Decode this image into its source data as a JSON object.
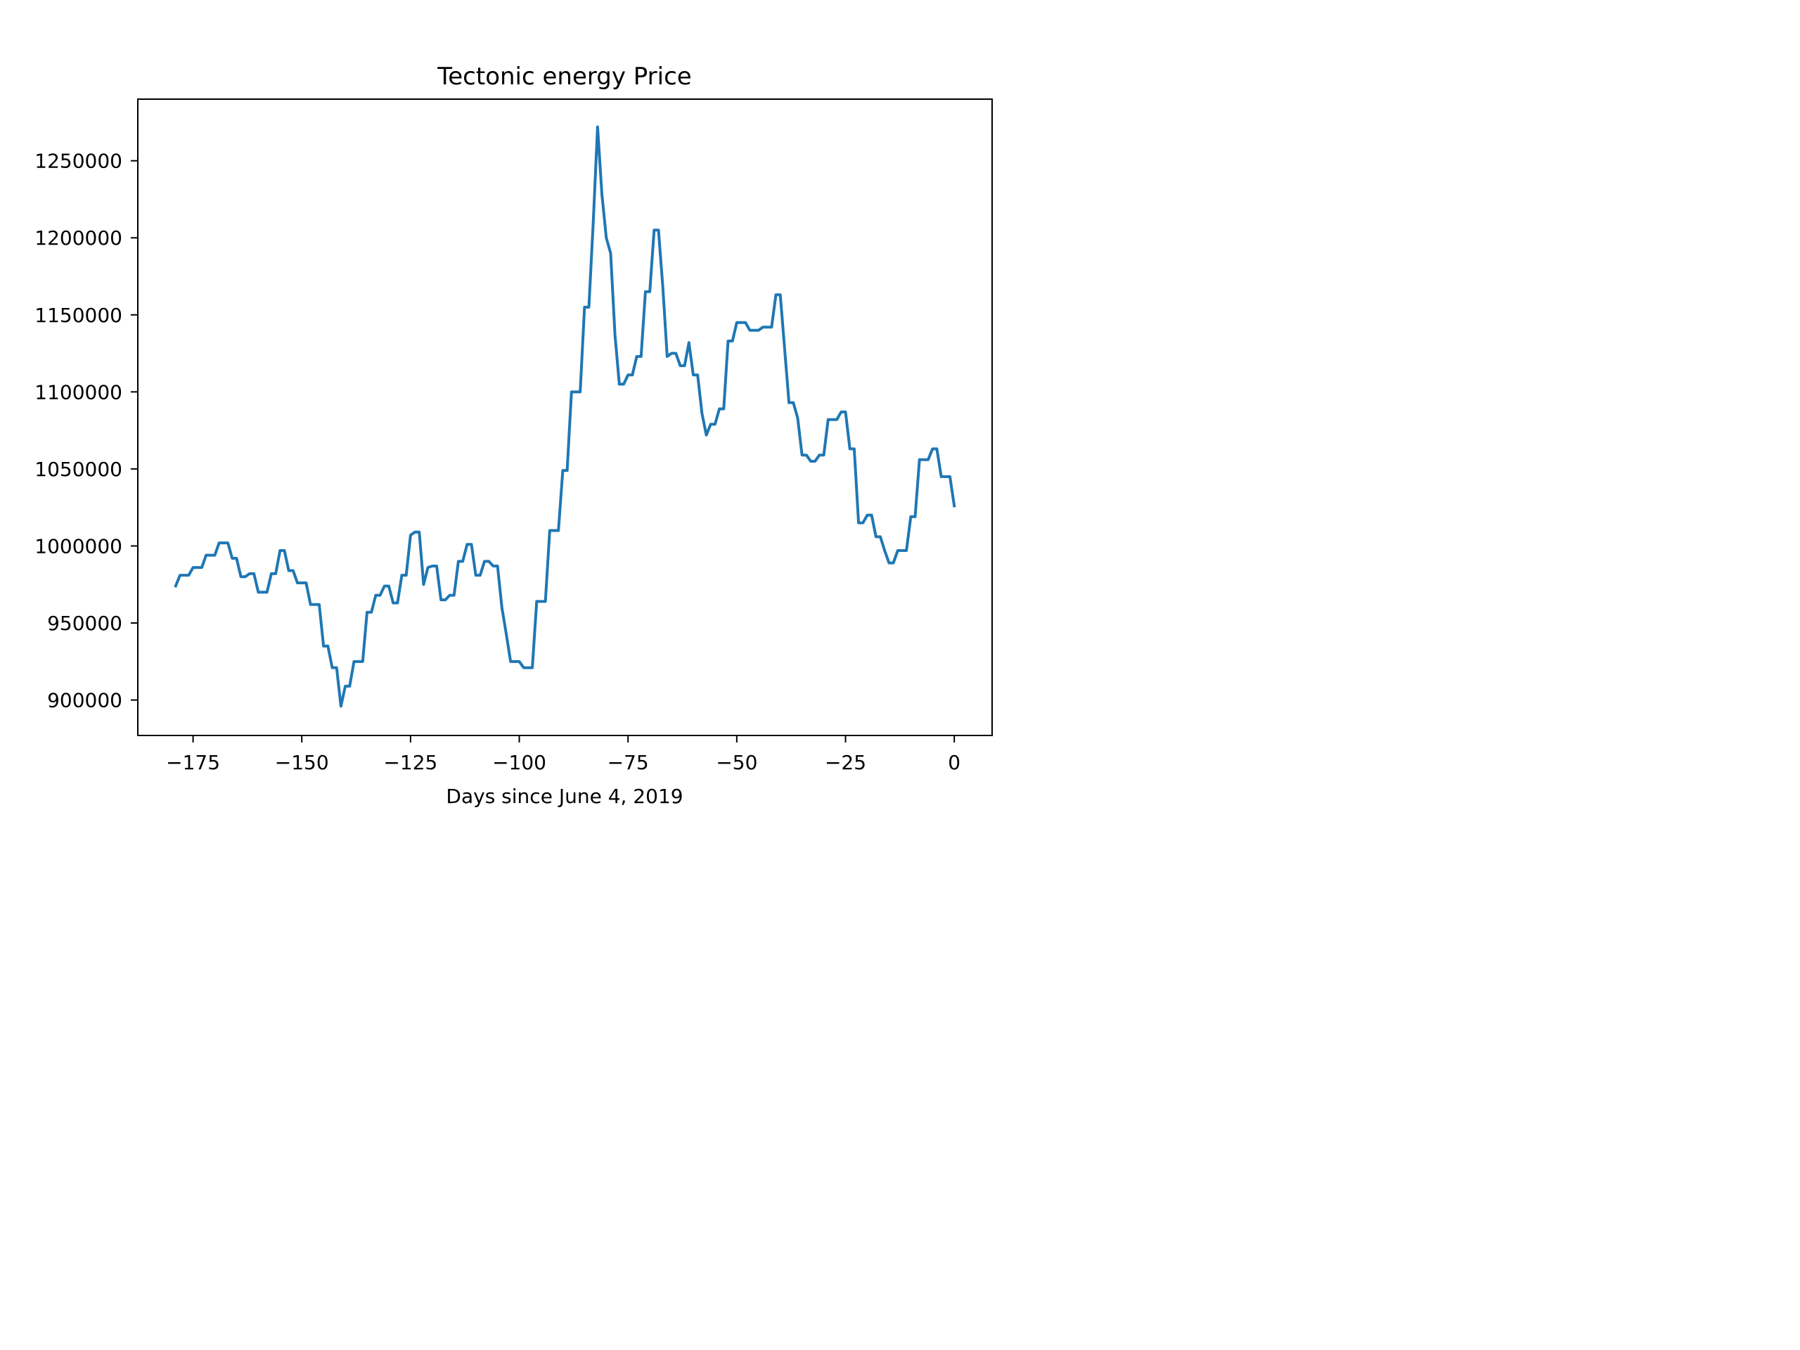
{
  "chart_data": {
    "type": "line",
    "title": "Tectonic energy Price",
    "xlabel": "Days since June 4, 2019",
    "ylabel": "",
    "xlim": [
      -187.7,
      8.7
    ],
    "ylim": [
      877000,
      1290000
    ],
    "xticks": [
      -175,
      -150,
      -125,
      -100,
      -75,
      -50,
      -25,
      0
    ],
    "xtick_labels": [
      "−175",
      "−150",
      "−125",
      "−100",
      "−75",
      "−50",
      "−25",
      "0"
    ],
    "yticks": [
      900000,
      950000,
      1000000,
      1050000,
      1100000,
      1150000,
      1200000,
      1250000
    ],
    "ytick_labels": [
      "900000",
      "950000",
      "1000000",
      "1050000",
      "1100000",
      "1150000",
      "1200000",
      "1250000"
    ],
    "grid": false,
    "color": "#1f77b4",
    "series": [
      {
        "x": [
          -179,
          -178,
          -177,
          -176,
          -175,
          -174,
          -173,
          -172,
          -171,
          -170,
          -169,
          -168,
          -167,
          -166,
          -165,
          -164,
          -163,
          -162,
          -161,
          -160,
          -159,
          -158,
          -157,
          -156,
          -155,
          -154,
          -153,
          -152,
          -151,
          -150,
          -149,
          -148,
          -147,
          -146,
          -145,
          -144,
          -143,
          -142,
          -141,
          -140,
          -139,
          -138,
          -137,
          -136,
          -135,
          -134,
          -133,
          -132,
          -131,
          -130,
          -129,
          -128,
          -127,
          -126,
          -125,
          -124,
          -123,
          -122,
          -121,
          -120,
          -119,
          -118,
          -117,
          -116,
          -115,
          -114,
          -113,
          -112,
          -111,
          -110,
          -109,
          -108,
          -107,
          -106,
          -105,
          -104,
          -103,
          -102,
          -101,
          -100,
          -99,
          -98,
          -97,
          -96,
          -95,
          -94,
          -93,
          -92,
          -91,
          -90,
          -89,
          -88,
          -87,
          -86,
          -85,
          -84,
          -83,
          -82,
          -81,
          -80,
          -79,
          -78,
          -77,
          -76,
          -75,
          -74,
          -73,
          -72,
          -71,
          -70,
          -69,
          -68,
          -67,
          -66,
          -65,
          -64,
          -63,
          -62,
          -61,
          -60,
          -59,
          -58,
          -57,
          -56,
          -55,
          -54,
          -53,
          -52,
          -51,
          -50,
          -49,
          -48,
          -47,
          -46,
          -45,
          -44,
          -43,
          -42,
          -41,
          -40,
          -39,
          -38,
          -37,
          -36,
          -35,
          -34,
          -33,
          -32,
          -31,
          -30,
          -29,
          -28,
          -27,
          -26,
          -25,
          -24,
          -23,
          -22,
          -21,
          -20,
          -19,
          -18,
          -17,
          -16,
          -15,
          -14,
          -13,
          -12,
          -11,
          -10,
          -9,
          -8,
          -7,
          -6,
          -5,
          -4,
          -3,
          -2,
          -1,
          0
        ],
        "y": [
          974000,
          981000,
          981000,
          981000,
          986000,
          986000,
          986000,
          994000,
          994000,
          994000,
          1002000,
          1002000,
          1002000,
          992000,
          992000,
          980000,
          980000,
          982000,
          982000,
          970000,
          970000,
          970000,
          982000,
          982000,
          997000,
          997000,
          984000,
          984000,
          976000,
          976000,
          976000,
          962000,
          962000,
          962000,
          935000,
          935000,
          921000,
          921000,
          896000,
          909000,
          909000,
          925000,
          925000,
          925000,
          957000,
          957000,
          968000,
          968000,
          974000,
          974000,
          963000,
          963000,
          981000,
          981000,
          1007000,
          1009000,
          1009000,
          975000,
          986000,
          987000,
          987000,
          965000,
          965000,
          968000,
          968000,
          990000,
          990000,
          1001000,
          1001000,
          981000,
          981000,
          990000,
          990000,
          987000,
          987000,
          960000,
          943000,
          925000,
          925000,
          925000,
          921000,
          921000,
          921000,
          964000,
          964000,
          964000,
          1010000,
          1010000,
          1010000,
          1049000,
          1049000,
          1100000,
          1100000,
          1100000,
          1155000,
          1155000,
          1210000,
          1272000,
          1228000,
          1200000,
          1190000,
          1137000,
          1105000,
          1105000,
          1111000,
          1111000,
          1123000,
          1123000,
          1165000,
          1165000,
          1205000,
          1205000,
          1168000,
          1123000,
          1125000,
          1125000,
          1117000,
          1117000,
          1132000,
          1111000,
          1111000,
          1086000,
          1072000,
          1079000,
          1079000,
          1089000,
          1089000,
          1133000,
          1133000,
          1145000,
          1145000,
          1145000,
          1140000,
          1140000,
          1140000,
          1142000,
          1142000,
          1142000,
          1163000,
          1163000,
          1128000,
          1093000,
          1093000,
          1083000,
          1059000,
          1059000,
          1055000,
          1055000,
          1059000,
          1059000,
          1082000,
          1082000,
          1082000,
          1087000,
          1087000,
          1063000,
          1063000,
          1015000,
          1015000,
          1020000,
          1020000,
          1006000,
          1006000,
          997000,
          989000,
          989000,
          997000,
          997000,
          997000,
          1019000,
          1019000,
          1056000,
          1056000,
          1056000,
          1063000,
          1063000,
          1045000,
          1045000,
          1045000,
          1026000
        ]
      }
    ]
  }
}
